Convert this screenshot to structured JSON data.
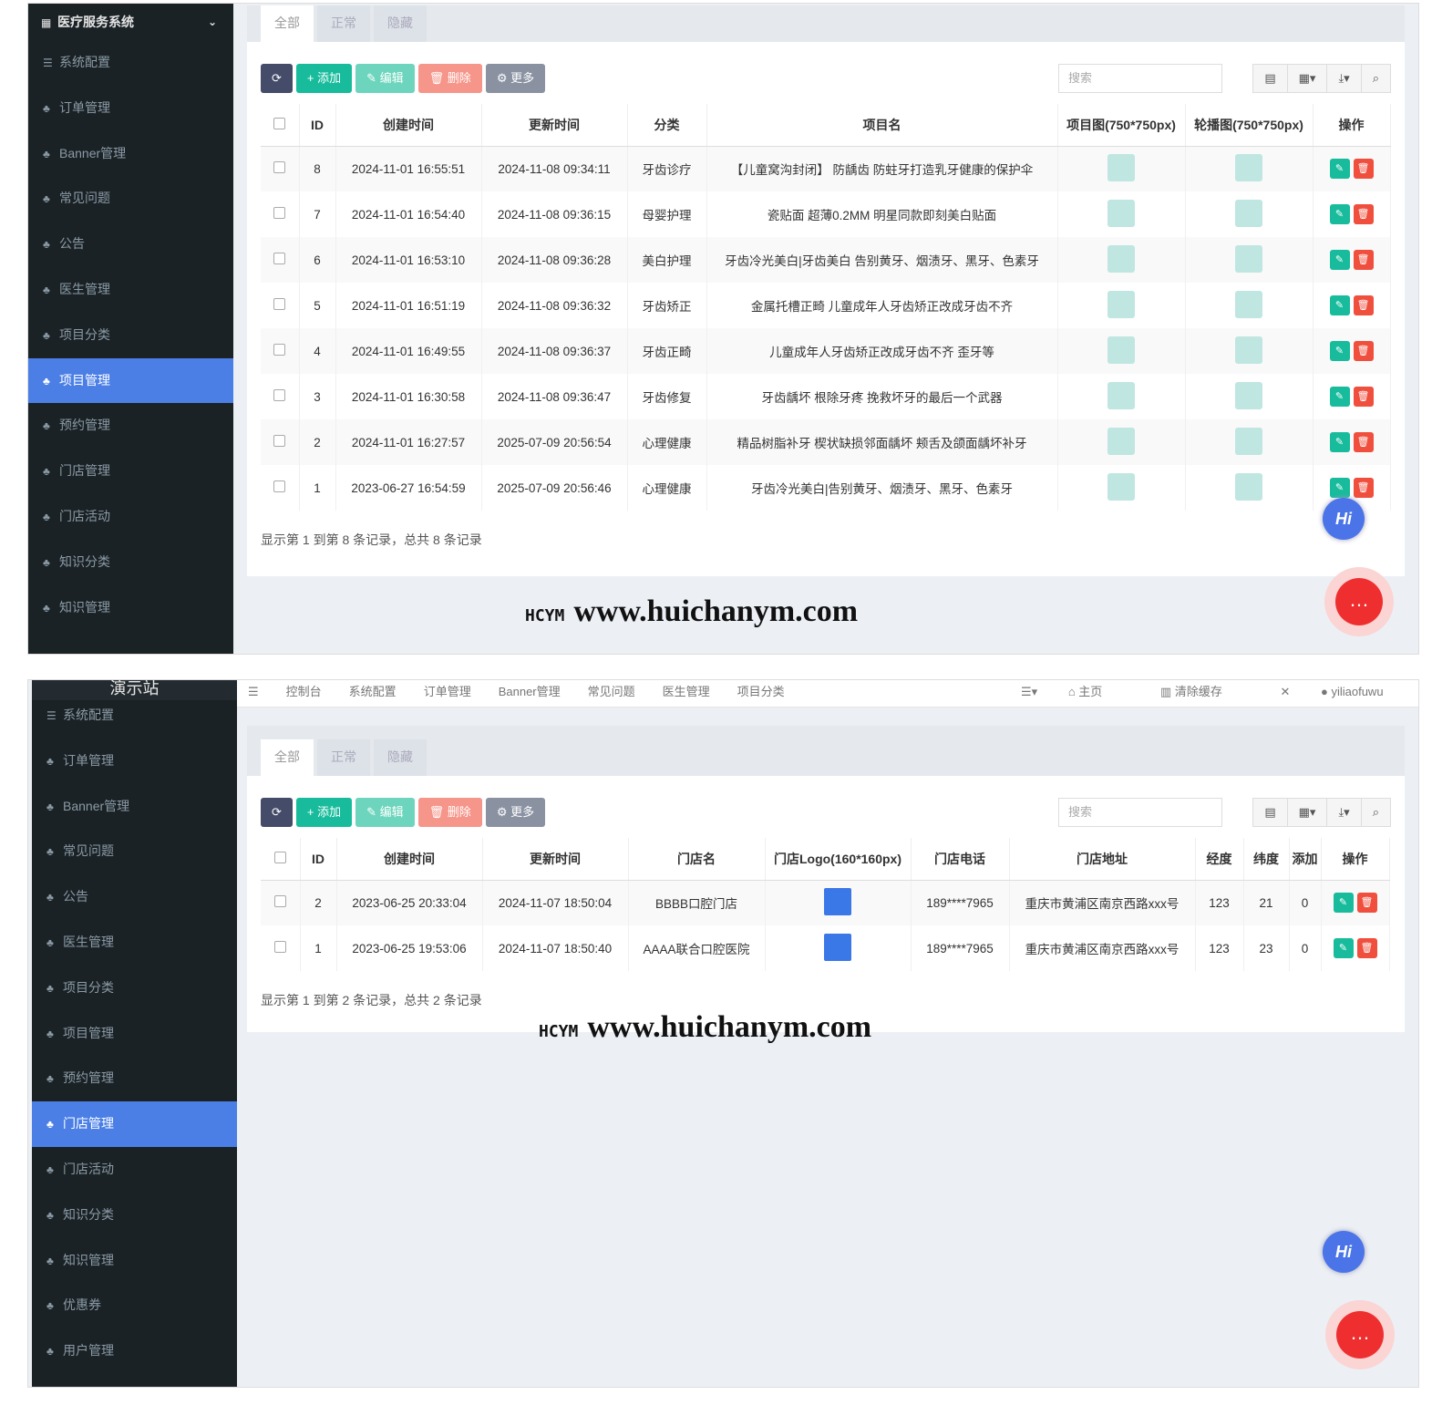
{
  "app_title": "医疗服务系统",
  "demo_title": "演示站",
  "colors": {
    "sidebar": "#1b2226",
    "active": "#4b7fe6",
    "add": "#18bc9c",
    "delete": "#f04f3d"
  },
  "top_nav": [
    "控制台",
    "系统配置",
    "订单管理",
    "Banner管理",
    "常见问题",
    "医生管理",
    "项目分类"
  ],
  "top_right": {
    "home": "主页",
    "clear_cache": "清除缓存",
    "user": "yiliaofuwu"
  },
  "tabs": [
    "全部",
    "正常",
    "隐藏"
  ],
  "toolbar": {
    "add": "添加",
    "edit": "编辑",
    "delete": "删除",
    "more": "更多",
    "search_placeholder": "搜索"
  },
  "sidebar1": [
    "系统配置",
    "订单管理",
    "Banner管理",
    "常见问题",
    "公告",
    "医生管理",
    "项目分类",
    "项目管理",
    "预约管理",
    "门店管理",
    "门店活动",
    "知识分类",
    "知识管理"
  ],
  "sidebar1_active": 7,
  "sidebar2": [
    "系统配置",
    "订单管理",
    "Banner管理",
    "常见问题",
    "公告",
    "医生管理",
    "项目分类",
    "项目管理",
    "预约管理",
    "门店管理",
    "门店活动",
    "知识分类",
    "知识管理",
    "优惠券",
    "用户管理"
  ],
  "sidebar2_active": 9,
  "table1": {
    "columns": [
      "ID",
      "创建时间",
      "更新时间",
      "分类",
      "项目名",
      "项目图(750*750px)",
      "轮播图(750*750px)",
      "操作"
    ],
    "rows": [
      [
        "8",
        "2024-11-01 16:55:51",
        "2024-11-08 09:34:11",
        "牙齿诊疗",
        "【儿童窝沟封闭】 防龋齿 防蛀牙打造乳牙健康的保护伞"
      ],
      [
        "7",
        "2024-11-01 16:54:40",
        "2024-11-08 09:36:15",
        "母婴护理",
        "瓷贴面 超薄0.2MM 明星同款即刻美白贴面"
      ],
      [
        "6",
        "2024-11-01 16:53:10",
        "2024-11-08 09:36:28",
        "美白护理",
        "牙齿冷光美白|牙齿美白 告别黄牙、烟渍牙、黑牙、色素牙"
      ],
      [
        "5",
        "2024-11-01 16:51:19",
        "2024-11-08 09:36:32",
        "牙齿矫正",
        "金属托槽正畸 儿童成年人牙齿矫正改成牙齿不齐"
      ],
      [
        "4",
        "2024-11-01 16:49:55",
        "2024-11-08 09:36:37",
        "牙齿正畸",
        "儿童成年人牙齿矫正改成牙齿不齐 歪牙等"
      ],
      [
        "3",
        "2024-11-01 16:30:58",
        "2024-11-08 09:36:47",
        "牙齿修复",
        "牙齿龋坏 根除牙疼 挽救坏牙的最后一个武器"
      ],
      [
        "2",
        "2024-11-01 16:27:57",
        "2025-07-09 20:56:54",
        "心理健康",
        "精品树脂补牙 楔状缺损邻面龋坏 颊舌及颌面龋坏补牙"
      ],
      [
        "1",
        "2023-06-27 16:54:59",
        "2025-07-09 20:56:46",
        "心理健康",
        "牙齿冷光美白|告别黄牙、烟渍牙、黑牙、色素牙"
      ]
    ],
    "footer": "显示第 1 到第 8 条记录，总共 8 条记录"
  },
  "table2": {
    "columns": [
      "ID",
      "创建时间",
      "更新时间",
      "门店名",
      "门店Logo(160*160px)",
      "门店电话",
      "门店地址",
      "经度",
      "纬度",
      "添加",
      "操作"
    ],
    "rows": [
      [
        "2",
        "2023-06-25 20:33:04",
        "2024-11-07 18:50:04",
        "BBBB口腔门店",
        "189****7965",
        "重庆市黄浦区南京西路xxx号",
        "123",
        "21",
        "0"
      ],
      [
        "1",
        "2023-06-25 19:53:06",
        "2024-11-07 18:50:40",
        "AAAA联合口腔医院",
        "189****7965",
        "重庆市黄浦区南京西路xxx号",
        "123",
        "23",
        "0"
      ]
    ],
    "footer": "显示第 1 到第 2 条记录，总共 2 条记录"
  },
  "watermark": {
    "brand": "HCYM",
    "url": "www.huichanym.com"
  },
  "hi_label": "Hi"
}
